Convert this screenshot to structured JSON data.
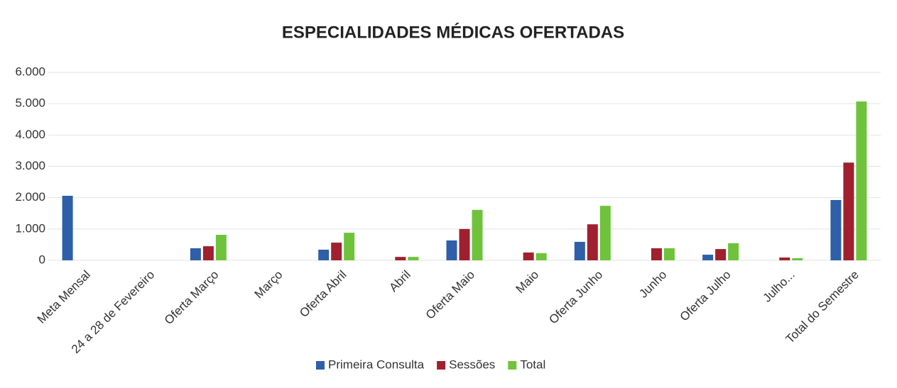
{
  "chart_data": {
    "type": "bar",
    "title": "ESPECIALIDADES MÉDICAS OFERTADAS",
    "categories": [
      "Meta Mensal",
      "24 a 28 de Fevereiro",
      "Oferta Março",
      "Março",
      "Oferta Abril",
      "Abril",
      "Oferta Maio",
      "Maio",
      "Oferta Junho",
      "Junho",
      "Oferta Julho",
      "Julho...",
      "Total do Semestre"
    ],
    "series": [
      {
        "name": "Primeira Consulta",
        "color": "#2e5fa8",
        "values": [
          2060,
          null,
          385,
          null,
          340,
          null,
          635,
          null,
          590,
          null,
          180,
          null,
          1925
        ]
      },
      {
        "name": "Sessões",
        "color": "#a0202f",
        "values": [
          null,
          null,
          450,
          null,
          565,
          110,
          1000,
          250,
          1150,
          385,
          360,
          90,
          3120
        ]
      },
      {
        "name": "Total",
        "color": "#6fc33c",
        "values": [
          null,
          null,
          815,
          null,
          880,
          110,
          1610,
          230,
          1740,
          385,
          545,
          70,
          5070
        ]
      }
    ],
    "ylim": [
      0,
      6000
    ],
    "yticks": [
      0,
      {
        "value": 1000,
        "label": "1.000"
      },
      {
        "value": 2000,
        "label": "2.000"
      },
      {
        "value": 3000,
        "label": "3.000"
      },
      {
        "value": 4000,
        "label": "4.000"
      },
      {
        "value": 5000,
        "label": "5.000"
      },
      {
        "value": 6000,
        "label": "6.000"
      }
    ],
    "grid": true,
    "legend": "bottom"
  }
}
